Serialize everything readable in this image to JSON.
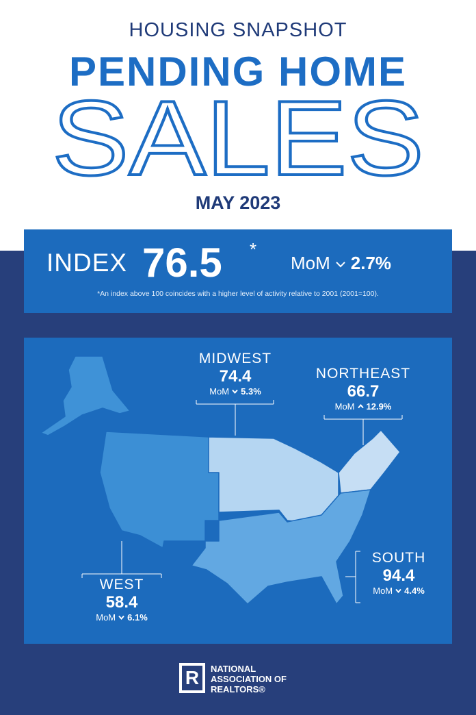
{
  "header": {
    "kicker": "HOUSING SNAPSHOT",
    "title": "PENDING HOME",
    "title_large": "SALES",
    "date": "MAY 2023"
  },
  "index": {
    "label": "INDEX",
    "value": "76.5",
    "marker": "*",
    "change_label": "MoM",
    "change_direction": "down",
    "change": "2.7%",
    "footnote": "*An index above 100 coincides with a higher level of activity relative to 2001 (2001=100)."
  },
  "regions": [
    {
      "name": "MIDWEST",
      "value": "74.4",
      "change_label": "MoM",
      "change_direction": "down",
      "change": "5.3%"
    },
    {
      "name": "NORTHEAST",
      "value": "66.7",
      "change_label": "MoM",
      "change_direction": "up",
      "change": "12.9%"
    },
    {
      "name": "SOUTH",
      "value": "94.4",
      "change_label": "MoM",
      "change_direction": "down",
      "change": "4.4%"
    },
    {
      "name": "WEST",
      "value": "58.4",
      "change_label": "MoM",
      "change_direction": "down",
      "change": "6.1%"
    }
  ],
  "footer": {
    "logo_letter": "R",
    "org_lines": [
      "NATIONAL",
      "ASSOCIATION OF",
      "REALTORS®"
    ]
  }
}
